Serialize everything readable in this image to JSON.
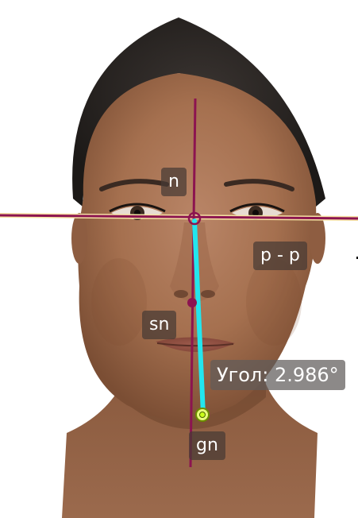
{
  "landmarks": {
    "nasion": "n",
    "pupil_line": "p - p",
    "subnasale": "sn",
    "gnathion": "gn"
  },
  "measurement": {
    "angle_label": "Угол: 2.986°",
    "angle_degrees": 2.986
  },
  "colors": {
    "midline": "#8c1450",
    "pupil_line": "#8c1450",
    "measurement_line": "#22e6ee",
    "gnathion_marker": "#c8ff1a",
    "label_background": "#463a34"
  }
}
